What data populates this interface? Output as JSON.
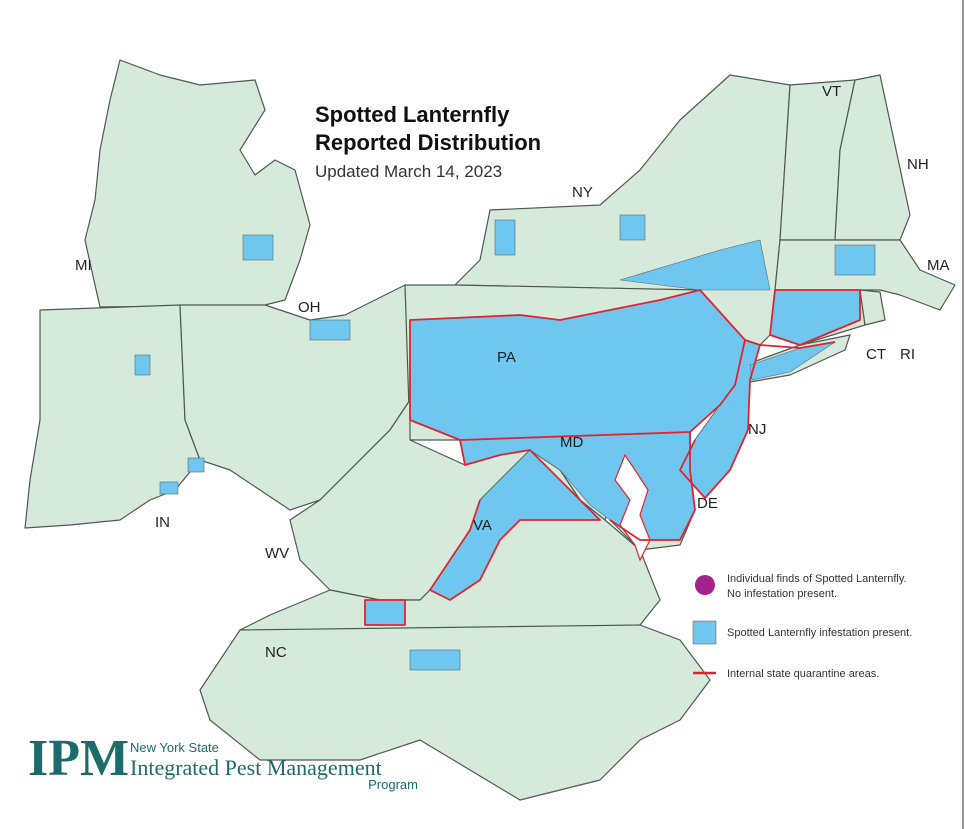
{
  "header": {
    "title": [
      "Spotted Lanternfly",
      "Reported Distribution"
    ],
    "subtitle": "Updated March 14, 2023"
  },
  "states": [
    "MI",
    "OH",
    "IN",
    "WV",
    "NC",
    "VA",
    "MD",
    "DE",
    "NJ",
    "PA",
    "NY",
    "VT",
    "NH",
    "MA",
    "CT",
    "RI"
  ],
  "legend": [
    {
      "label": [
        "Individual finds of Spotted Lanternfly.",
        "No infestation present."
      ]
    },
    {
      "label": [
        "Spotted Lanternfly infestation present."
      ]
    },
    {
      "label": [
        "Internal state quarantine areas."
      ]
    }
  ],
  "logo": {
    "mark": "IPM",
    "line1": "New York State",
    "line2": "Integrated Pest Management",
    "line3": "Program"
  }
}
